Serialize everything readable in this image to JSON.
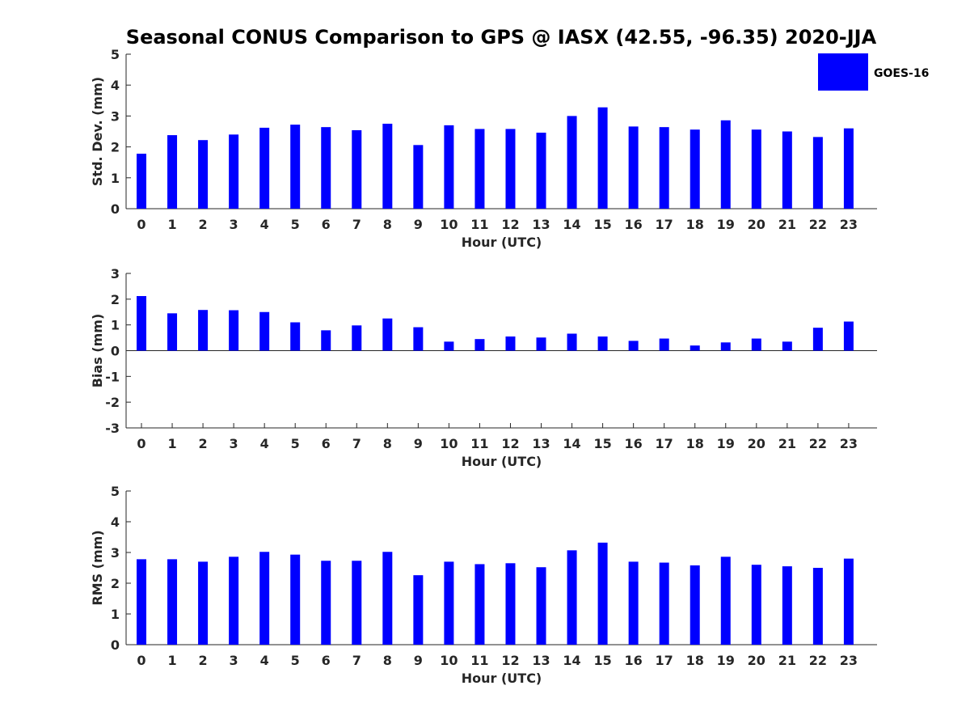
{
  "chart_data": [
    {
      "type": "bar",
      "title": "Seasonal CONUS Comparison to GPS @ IASX (42.55, -96.35) 2020-JJA",
      "xlabel": "Hour (UTC)",
      "ylabel": "Std. Dev. (mm)",
      "ylim": [
        0,
        5
      ],
      "yticks": [
        "0",
        "1",
        "2",
        "3",
        "4",
        "5"
      ],
      "categories": [
        "0",
        "1",
        "2",
        "3",
        "4",
        "5",
        "6",
        "7",
        "8",
        "9",
        "10",
        "11",
        "12",
        "13",
        "14",
        "15",
        "16",
        "17",
        "18",
        "19",
        "20",
        "21",
        "22",
        "23"
      ],
      "series": [
        {
          "name": "GOES-16",
          "color": "#0000ff",
          "values": [
            1.78,
            2.38,
            2.22,
            2.4,
            2.62,
            2.72,
            2.64,
            2.54,
            2.75,
            2.06,
            2.7,
            2.58,
            2.58,
            2.46,
            3.0,
            3.28,
            2.66,
            2.64,
            2.56,
            2.86,
            2.56,
            2.5,
            2.32,
            2.6
          ]
        }
      ],
      "legend": {
        "label": "GOES-16",
        "position": "top-right"
      }
    },
    {
      "type": "bar",
      "xlabel": "Hour (UTC)",
      "ylabel": "Bias (mm)",
      "ylim": [
        -3,
        3
      ],
      "yticks": [
        "-3",
        "-2",
        "-1",
        "0",
        "1",
        "2",
        "3"
      ],
      "zero_line": true,
      "categories": [
        "0",
        "1",
        "2",
        "3",
        "4",
        "5",
        "6",
        "7",
        "8",
        "9",
        "10",
        "11",
        "12",
        "13",
        "14",
        "15",
        "16",
        "17",
        "18",
        "19",
        "20",
        "21",
        "22",
        "23"
      ],
      "series": [
        {
          "name": "GOES-16",
          "color": "#0000ff",
          "values": [
            2.12,
            1.45,
            1.58,
            1.57,
            1.5,
            1.1,
            0.79,
            0.98,
            1.25,
            0.91,
            0.35,
            0.45,
            0.55,
            0.51,
            0.66,
            0.55,
            0.38,
            0.47,
            0.2,
            0.32,
            0.47,
            0.35,
            0.89,
            1.13
          ]
        }
      ]
    },
    {
      "type": "bar",
      "xlabel": "Hour (UTC)",
      "ylabel": "RMS (mm)",
      "ylim": [
        0,
        5
      ],
      "yticks": [
        "0",
        "1",
        "2",
        "3",
        "4",
        "5"
      ],
      "categories": [
        "0",
        "1",
        "2",
        "3",
        "4",
        "5",
        "6",
        "7",
        "8",
        "9",
        "10",
        "11",
        "12",
        "13",
        "14",
        "15",
        "16",
        "17",
        "18",
        "19",
        "20",
        "21",
        "22",
        "23"
      ],
      "series": [
        {
          "name": "GOES-16",
          "color": "#0000ff",
          "values": [
            2.78,
            2.78,
            2.7,
            2.86,
            3.02,
            2.93,
            2.73,
            2.73,
            3.02,
            2.26,
            2.7,
            2.62,
            2.65,
            2.52,
            3.07,
            3.32,
            2.7,
            2.67,
            2.58,
            2.86,
            2.6,
            2.55,
            2.5,
            2.8
          ]
        }
      ]
    }
  ]
}
